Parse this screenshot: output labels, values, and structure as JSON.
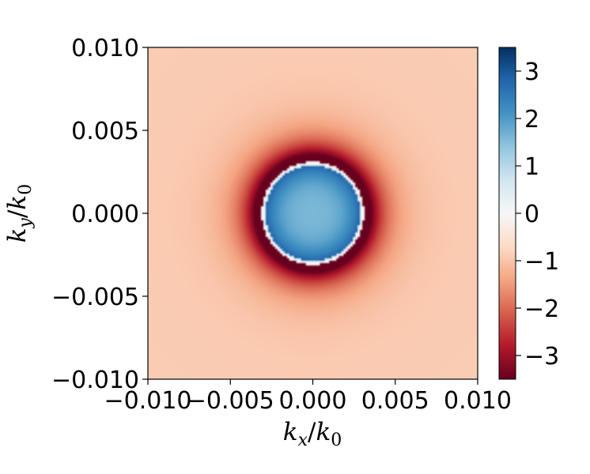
{
  "chart_data": {
    "type": "heatmap",
    "title": "",
    "xlabel": "k_x/k_0",
    "ylabel": "k_y/k_0",
    "xlim": [
      -0.01,
      0.01
    ],
    "ylim": [
      -0.01,
      0.01
    ],
    "xticks": [
      "−0.010",
      "−0.005",
      "0.000",
      "0.005",
      "0.010"
    ],
    "yticks": [
      "0.010",
      "0.005",
      "0.000",
      "−0.005",
      "−0.010"
    ],
    "xtick_values": [
      -0.01,
      -0.005,
      0.0,
      0.005,
      0.01
    ],
    "ytick_values": [
      0.01,
      0.005,
      0.0,
      -0.005,
      -0.01
    ],
    "colormap": "RdBu",
    "colorbar": {
      "range": [
        -3.5,
        3.5
      ],
      "ticks": [
        3,
        2,
        1,
        0,
        -1,
        -2,
        -3
      ],
      "tick_labels": [
        "3",
        "2",
        "1",
        "0",
        "−1",
        "−2",
        "−3"
      ]
    },
    "field": {
      "description_values": "radially symmetric",
      "disk_radius": 0.0031,
      "disk_value_center": 1.6,
      "disk_value_edge": 2.8,
      "rim_value": 0.3,
      "outer_ring_value": -3.5,
      "far_value": -0.9
    },
    "grid": false
  }
}
